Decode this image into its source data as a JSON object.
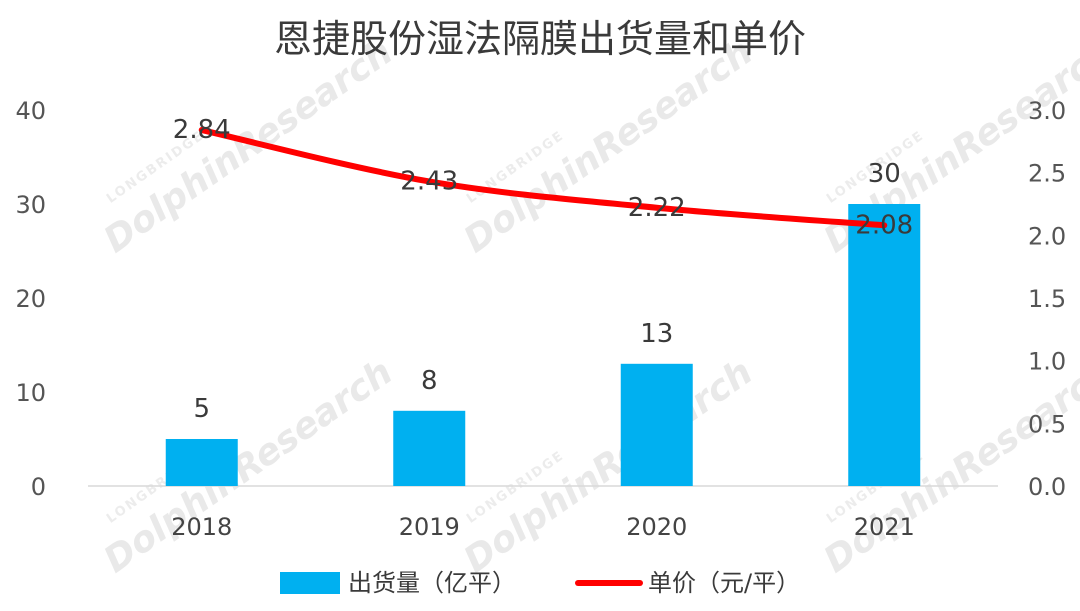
{
  "chart_data": {
    "type": "bar",
    "title": "恩捷股份湿法隔膜出货量和单价",
    "categories": [
      "2018",
      "2019",
      "2020",
      "2021"
    ],
    "series": [
      {
        "name": "出货量（亿平）",
        "type": "bar",
        "axis": "left",
        "values": [
          5,
          8,
          13,
          30
        ]
      },
      {
        "name": "单价（元/平）",
        "type": "line",
        "axis": "right",
        "values": [
          2.84,
          2.43,
          2.22,
          2.08
        ]
      }
    ],
    "y_left": {
      "lim": [
        0,
        40
      ],
      "ticks": [
        "0",
        "10",
        "20",
        "30",
        "40"
      ]
    },
    "y_right": {
      "lim": [
        0,
        3.0
      ],
      "ticks": [
        "0.0",
        "0.5",
        "1.0",
        "1.5",
        "2.0",
        "2.5",
        "3.0"
      ]
    },
    "grid": false,
    "legend": "bottom",
    "colors": {
      "bar": "#00b0f0",
      "line": "#ff0000"
    }
  },
  "watermark": {
    "main": "DolphinResearch",
    "sub": "LONGBRIDGE"
  }
}
